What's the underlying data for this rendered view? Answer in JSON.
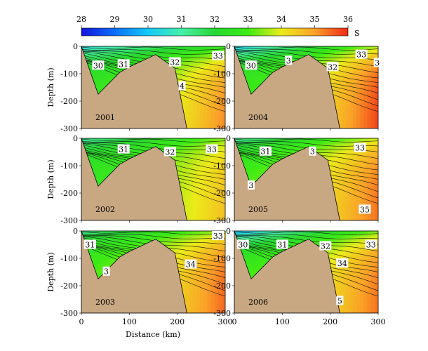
{
  "chart_data": {
    "type": "heatmap",
    "title": "",
    "colorbar": {
      "label": "S",
      "ticks": [
        28,
        29,
        30,
        31,
        32,
        33,
        34,
        35,
        36
      ],
      "range": [
        28,
        36
      ]
    },
    "xlabel": "Distance (km)",
    "ylabel": "Depth (m)",
    "xlim": [
      0,
      300
    ],
    "ylim": [
      -300,
      0
    ],
    "xticks": [
      0,
      100,
      200,
      300
    ],
    "yticks": [
      0,
      -100,
      -200,
      -300
    ],
    "bathymetry": {
      "x": [
        0,
        35,
        80,
        100,
        155,
        195,
        220,
        300
      ],
      "depth": [
        0,
        -175,
        -95,
        -75,
        -30,
        -80,
        -300,
        -300
      ]
    },
    "panels": [
      {
        "year": "2001",
        "contour_labels": [
          {
            "text": "30",
            "x": 35,
            "depth": -70
          },
          {
            "text": "31",
            "x": 88,
            "depth": -65
          },
          {
            "text": "32",
            "x": 195,
            "depth": -58
          },
          {
            "text": "33",
            "x": 285,
            "depth": -35
          },
          {
            "text": "4",
            "x": 210,
            "depth": -145
          }
        ],
        "surface": {
          "s0": 30.3,
          "s1": 32.6,
          "deep0": 32.8,
          "deep1": 35.2
        }
      },
      {
        "year": "2004",
        "contour_labels": [
          {
            "text": "30",
            "x": 35,
            "depth": -70
          },
          {
            "text": "32",
            "x": 205,
            "depth": -75
          },
          {
            "text": "33",
            "x": 265,
            "depth": -30
          },
          {
            "text": "3",
            "x": 113,
            "depth": -52
          },
          {
            "text": "3",
            "x": 298,
            "depth": -60
          }
        ],
        "surface": {
          "s0": 30.0,
          "s1": 33.6,
          "deep0": 33.0,
          "deep1": 35.8
        }
      },
      {
        "year": "2002",
        "contour_labels": [
          {
            "text": "31",
            "x": 88,
            "depth": -40
          },
          {
            "text": "32",
            "x": 185,
            "depth": -50
          },
          {
            "text": "33",
            "x": 272,
            "depth": -40
          }
        ],
        "surface": {
          "s0": 31.0,
          "s1": 33.4,
          "deep0": 32.8,
          "deep1": 34.6
        }
      },
      {
        "year": "2005",
        "contour_labels": [
          {
            "text": "31",
            "x": 65,
            "depth": -48
          },
          {
            "text": "33",
            "x": 262,
            "depth": -35
          },
          {
            "text": "3",
            "x": 163,
            "depth": -48
          },
          {
            "text": "35",
            "x": 272,
            "depth": -260
          },
          {
            "text": "3",
            "x": 35,
            "depth": -172
          }
        ],
        "surface": {
          "s0": 31.0,
          "s1": 33.8,
          "deep0": 33.2,
          "deep1": 35.4
        }
      },
      {
        "year": "2003",
        "contour_labels": [
          {
            "text": "31",
            "x": 18,
            "depth": -50
          },
          {
            "text": "33",
            "x": 285,
            "depth": -18
          },
          {
            "text": "34",
            "x": 228,
            "depth": -122
          },
          {
            "text": "3",
            "x": 52,
            "depth": -148
          }
        ],
        "surface": {
          "s0": 31.2,
          "s1": 33.6,
          "deep0": 33.2,
          "deep1": 35.5
        }
      },
      {
        "year": "2006",
        "contour_labels": [
          {
            "text": "30",
            "x": 18,
            "depth": -50
          },
          {
            "text": "31",
            "x": 100,
            "depth": -50
          },
          {
            "text": "32",
            "x": 190,
            "depth": -55
          },
          {
            "text": "33",
            "x": 285,
            "depth": -50
          },
          {
            "text": "34",
            "x": 225,
            "depth": -118
          },
          {
            "text": "5",
            "x": 220,
            "depth": -255
          }
        ],
        "surface": {
          "s0": 29.8,
          "s1": 33.3,
          "deep0": 33.2,
          "deep1": 35.4
        }
      }
    ]
  }
}
